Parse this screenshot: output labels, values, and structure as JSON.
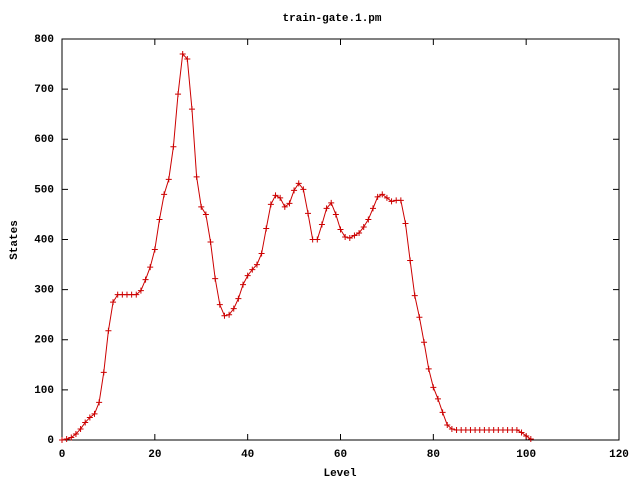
{
  "chart_data": {
    "type": "line",
    "title": "train-gate.1.pm",
    "x_label": "Level",
    "y_label": "States",
    "x": [
      0,
      1,
      2,
      3,
      4,
      5,
      6,
      7,
      8,
      9,
      10,
      11,
      12,
      13,
      14,
      15,
      16,
      17,
      18,
      19,
      20,
      21,
      22,
      23,
      24,
      25,
      26,
      27,
      28,
      29,
      30,
      31,
      32,
      33,
      34,
      35,
      36,
      37,
      38,
      39,
      40,
      41,
      42,
      43,
      44,
      45,
      46,
      47,
      48,
      49,
      50,
      51,
      52,
      53,
      54,
      55,
      56,
      57,
      58,
      59,
      60,
      61,
      62,
      63,
      64,
      65,
      66,
      67,
      68,
      69,
      70,
      71,
      72,
      73,
      74,
      75,
      76,
      77,
      78,
      79,
      80,
      81,
      82,
      83,
      84,
      85,
      86,
      87,
      88,
      89,
      90,
      91,
      92,
      93,
      94,
      95,
      96,
      97,
      98,
      99,
      100,
      101
    ],
    "series": [
      {
        "color": "#cc0000",
        "values": [
          0,
          2,
          5,
          12,
          22,
          35,
          45,
          52,
          75,
          135,
          218,
          275,
          290,
          290,
          290,
          290,
          290,
          298,
          320,
          345,
          380,
          440,
          490,
          520,
          585,
          690,
          770,
          760,
          660,
          525,
          465,
          450,
          395,
          322,
          270,
          248,
          250,
          262,
          282,
          310,
          328,
          340,
          350,
          372,
          422,
          470,
          488,
          483,
          465,
          472,
          498,
          512,
          500,
          452,
          400,
          400,
          430,
          462,
          473,
          450,
          420,
          405,
          403,
          408,
          413,
          425,
          440,
          462,
          485,
          490,
          483,
          476,
          478,
          478,
          432,
          358,
          288,
          245,
          195,
          142,
          105,
          82,
          55,
          30,
          22,
          20,
          20,
          20,
          20,
          20,
          20,
          20,
          20,
          20,
          20,
          20,
          20,
          20,
          20,
          15,
          8,
          2
        ]
      }
    ],
    "xlim": [
      0,
      120
    ],
    "xticks": [
      0,
      20,
      40,
      60,
      80,
      100,
      120
    ],
    "ylim": [
      0,
      800
    ],
    "yticks": [
      0,
      100,
      200,
      300,
      400,
      500,
      600,
      700,
      800
    ]
  }
}
